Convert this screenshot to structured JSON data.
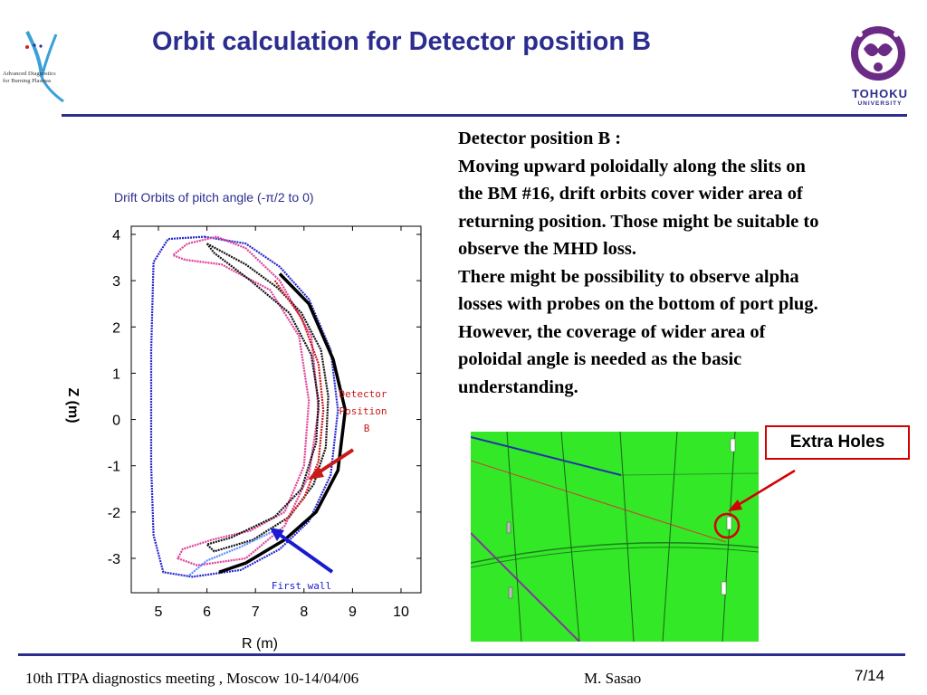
{
  "slide": {
    "title": "Orbit calculation for Detector position B",
    "page_number": "7/14"
  },
  "logos": {
    "left": {
      "line1": "Advanced Diagnostics",
      "line2": "for Burning Plasmas",
      "icon": "star-swirl-logo"
    },
    "right": {
      "name": "TOHOKU",
      "sub": "UNIVERSITY",
      "icon": "university-crest-logo"
    }
  },
  "body_text": [
    "Detector position B :",
    "Moving upward poloidally along the slits on",
    "the BM #16, drift orbits cover wider area of",
    "returning position. Those might be suitable to",
    "observe the MHD loss.",
    "There might be possibility to observe alpha",
    "losses with probes on the bottom of port plug.",
    "However,  the coverage of wider area of",
    "poloidal angle is needed as the basic",
    "understanding."
  ],
  "plot": {
    "title": "Drift Orbits of pitch angle (-π/2 to 0)",
    "xlabel": "R (m)",
    "ylabel": "Z (m)",
    "annotations": {
      "detector_line1": "Detector",
      "detector_line2": "Position",
      "detector_line3": "B",
      "first_wall": "First wall"
    }
  },
  "chart_data": {
    "type": "line",
    "title": "Drift Orbits of pitch angle (-π/2 to 0)",
    "xlabel": "R (m)",
    "ylabel": "Z (m)",
    "xlim": [
      4.4,
      10.4
    ],
    "ylim": [
      -3.8,
      4.2
    ],
    "x_ticks": [
      5,
      6,
      7,
      8,
      9,
      10
    ],
    "y_ticks": [
      4,
      3,
      2,
      1,
      0,
      -1,
      -2,
      -3
    ],
    "series": [
      {
        "color": "#2525d0",
        "points": [
          [
            5.95,
            3.95
          ],
          [
            6.8,
            3.8
          ],
          [
            7.5,
            3.3
          ],
          [
            8.1,
            2.6
          ],
          [
            8.55,
            1.5
          ],
          [
            8.7,
            0.2
          ],
          [
            8.55,
            -1.2
          ],
          [
            8.1,
            -2.2
          ],
          [
            7.5,
            -2.8
          ],
          [
            6.7,
            -3.25
          ],
          [
            5.7,
            -3.4
          ],
          [
            5.1,
            -3.3
          ],
          [
            4.9,
            -2.5
          ],
          [
            4.85,
            -1.0
          ],
          [
            4.85,
            1.5
          ],
          [
            4.9,
            3.4
          ],
          [
            5.2,
            3.9
          ],
          [
            5.95,
            3.95
          ]
        ]
      },
      {
        "color": "#e0409a",
        "points": [
          [
            6.2,
            3.95
          ],
          [
            5.6,
            3.8
          ],
          [
            5.3,
            3.55
          ],
          [
            5.55,
            3.45
          ],
          [
            6.3,
            3.35
          ],
          [
            7.3,
            2.8
          ],
          [
            7.9,
            1.8
          ],
          [
            8.1,
            0.4
          ],
          [
            8.0,
            -1.0
          ],
          [
            7.6,
            -2.0
          ],
          [
            6.9,
            -2.4
          ],
          [
            6.1,
            -2.6
          ],
          [
            5.5,
            -2.8
          ],
          [
            5.4,
            -3.0
          ],
          [
            5.8,
            -3.15
          ],
          [
            6.8,
            -3.0
          ],
          [
            7.6,
            -2.3
          ],
          [
            8.1,
            -1.2
          ],
          [
            8.3,
            0.2
          ],
          [
            8.15,
            1.8
          ],
          [
            7.5,
            3.0
          ],
          [
            6.8,
            3.7
          ],
          [
            6.2,
            3.95
          ]
        ]
      },
      {
        "color": "#111111",
        "points": [
          [
            6.0,
            3.8
          ],
          [
            6.8,
            3.35
          ],
          [
            7.45,
            2.85
          ],
          [
            7.95,
            2.3
          ],
          [
            8.35,
            1.5
          ],
          [
            8.5,
            0.5
          ],
          [
            8.45,
            -0.6
          ],
          [
            8.2,
            -1.4
          ],
          [
            7.7,
            -2.1
          ],
          [
            6.95,
            -2.6
          ],
          [
            6.15,
            -2.85
          ],
          [
            6.0,
            -2.7
          ],
          [
            6.5,
            -2.55
          ],
          [
            7.4,
            -2.1
          ],
          [
            7.95,
            -1.5
          ],
          [
            8.25,
            -0.5
          ],
          [
            8.3,
            0.4
          ],
          [
            8.15,
            1.4
          ],
          [
            7.7,
            2.3
          ],
          [
            6.9,
            3.0
          ],
          [
            6.15,
            3.6
          ],
          [
            6.0,
            3.8
          ]
        ]
      },
      {
        "color": "#c81a1a",
        "points": [
          [
            7.4,
            3.0
          ],
          [
            7.95,
            2.2
          ],
          [
            8.3,
            1.2
          ],
          [
            8.4,
            0.2
          ],
          [
            8.3,
            -0.9
          ],
          [
            8.0,
            -1.7
          ],
          [
            7.6,
            -2.2
          ]
        ]
      },
      {
        "color": "#5a8cff",
        "points": [
          [
            5.6,
            -3.4
          ],
          [
            6.0,
            -3.05
          ],
          [
            6.7,
            -2.75
          ],
          [
            7.4,
            -2.4
          ]
        ]
      }
    ],
    "first_wall": {
      "color": "#000000",
      "points": [
        [
          7.5,
          3.15
        ],
        [
          8.1,
          2.5
        ],
        [
          8.6,
          1.3
        ],
        [
          8.85,
          0.2
        ],
        [
          8.7,
          -1.1
        ],
        [
          8.25,
          -2.0
        ],
        [
          7.6,
          -2.6
        ],
        [
          6.8,
          -3.1
        ],
        [
          6.25,
          -3.3
        ]
      ]
    }
  },
  "extra_holes": {
    "label": "Extra Holes"
  },
  "footer": {
    "left": "10th  ITPA diagnostics meeting , Moscow 10-14/04/06",
    "right": "M. Sasao"
  },
  "colors": {
    "title": "#2b2d8f",
    "rule": "#2b2d8f",
    "photo_green": "#33e826",
    "annotation_red": "#c81a1a",
    "annotation_blue": "#1a1ad2"
  }
}
